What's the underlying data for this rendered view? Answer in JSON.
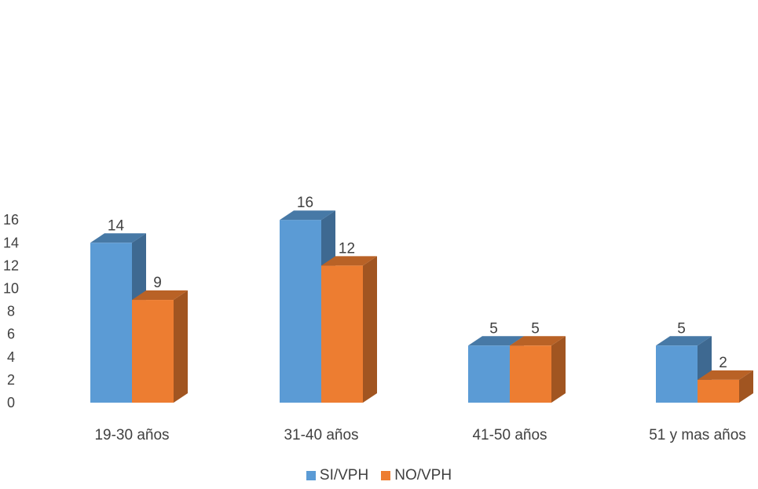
{
  "chart_data": {
    "type": "bar",
    "title": "",
    "xlabel": "",
    "ylabel": "",
    "categories": [
      "19-30 años",
      "31-40 años",
      "41-50 años",
      "51 y mas años"
    ],
    "series": [
      {
        "name": "SI/VPH",
        "values": [
          14,
          16,
          5,
          5
        ],
        "color": "#5B9BD5"
      },
      {
        "name": "NO/VPH",
        "values": [
          9,
          12,
          5,
          2
        ],
        "color": "#ED7D31"
      }
    ],
    "ylim": [
      0,
      16
    ],
    "yticks": [
      0,
      2,
      4,
      6,
      8,
      10,
      12,
      14,
      16
    ],
    "grid": false,
    "legend_position": "bottom",
    "style": "3d-column"
  }
}
